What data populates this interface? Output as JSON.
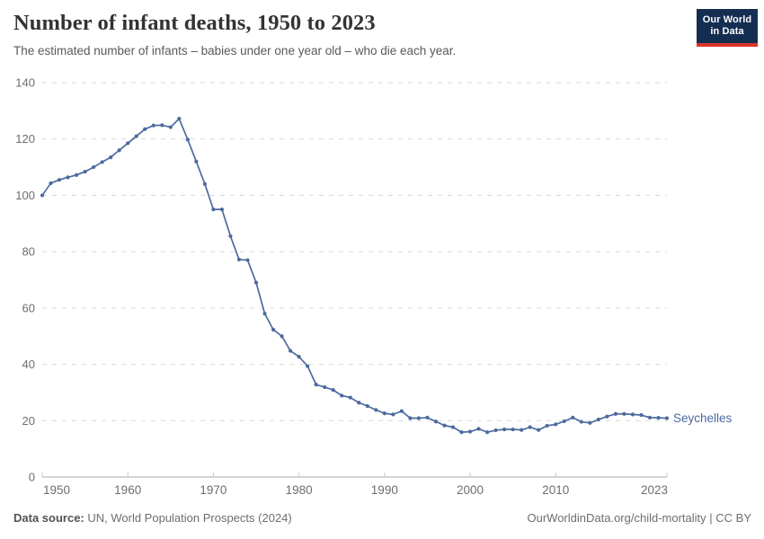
{
  "header": {
    "title": "Number of infant deaths, 1950 to 2023",
    "subtitle": "The estimated number of infants – babies under one year old – who die each year.",
    "logo": {
      "line1": "Our World",
      "line2": "in Data"
    }
  },
  "footer": {
    "source_label": "Data source:",
    "source_text": " UN, World Population Prospects (2024)",
    "credit": "OurWorldinData.org/child-mortality | CC BY"
  },
  "colors": {
    "series_line": "#4c6a9e",
    "logo_background": "#142e52",
    "logo_underline": "#dc352a",
    "gridline": "#d9d9d9",
    "axis": "#a8a8a8",
    "axis_tick": "#c9c9c9",
    "tick_label": "#6e6e6e"
  },
  "chart_data": {
    "type": "line",
    "title": "Number of infant deaths, 1950 to 2023",
    "subtitle": "The estimated number of infants – babies under one year old – who die each year.",
    "xlabel": "",
    "ylabel": "",
    "xlim": [
      1950,
      2023
    ],
    "ylim": [
      0,
      140
    ],
    "xticks": [
      1950,
      1960,
      1970,
      1980,
      1990,
      2000,
      2010,
      2023
    ],
    "yticks": [
      0,
      20,
      40,
      60,
      80,
      100,
      120,
      140
    ],
    "grid": "horizontal-dashed",
    "legend_position": "end-of-line-label",
    "series": [
      {
        "name": "Seychelles",
        "color": "#4c6a9e",
        "x": [
          1950,
          1951,
          1952,
          1953,
          1954,
          1955,
          1956,
          1957,
          1958,
          1959,
          1960,
          1961,
          1962,
          1963,
          1964,
          1965,
          1966,
          1967,
          1968,
          1969,
          1970,
          1971,
          1972,
          1973,
          1974,
          1975,
          1976,
          1977,
          1978,
          1979,
          1980,
          1981,
          1982,
          1983,
          1984,
          1985,
          1986,
          1987,
          1988,
          1989,
          1990,
          1991,
          1992,
          1993,
          1994,
          1995,
          1996,
          1997,
          1998,
          1999,
          2000,
          2001,
          2002,
          2003,
          2004,
          2005,
          2006,
          2007,
          2008,
          2009,
          2010,
          2011,
          2012,
          2013,
          2014,
          2015,
          2016,
          2017,
          2018,
          2019,
          2020,
          2021,
          2022,
          2023
        ],
        "values": [
          100,
          104.3,
          105.5,
          106.4,
          107.2,
          108.4,
          110,
          111.8,
          113.5,
          116,
          118.5,
          121,
          123.5,
          124.8,
          124.9,
          124.2,
          127.2,
          119.8,
          112,
          104,
          95,
          95,
          85.5,
          77.2,
          77,
          69,
          58,
          52.3,
          50,
          44.8,
          42.7,
          39.4,
          32.8,
          31.9,
          30.9,
          28.9,
          28.2,
          26.4,
          25.2,
          23.8,
          22.6,
          22.2,
          23.4,
          20.9,
          20.9,
          21.1,
          19.7,
          18.3,
          17.7,
          15.9,
          16.1,
          17.1,
          15.9,
          16.6,
          16.9,
          16.9,
          16.7,
          17.7,
          16.7,
          18.2,
          18.7,
          19.8,
          21.1,
          19.6,
          19.2,
          20.4,
          21.5,
          22.4,
          22.4,
          22.2,
          22,
          21.1,
          21,
          20.9
        ]
      }
    ]
  }
}
